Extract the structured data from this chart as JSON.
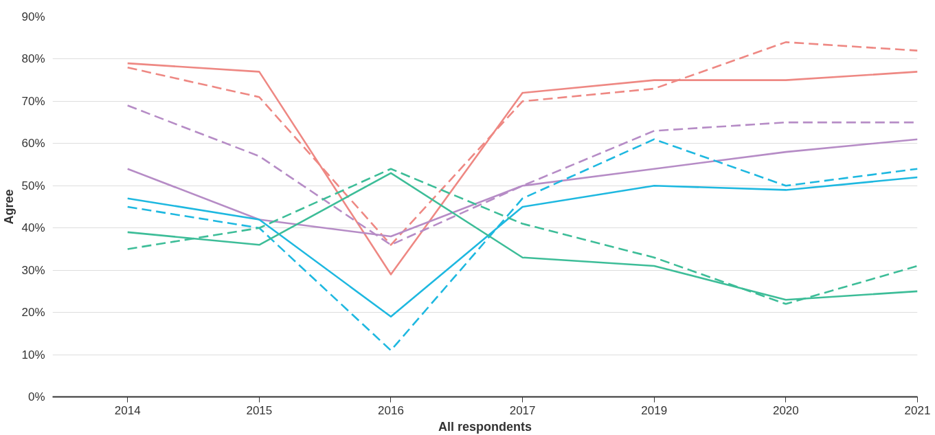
{
  "chart_data": {
    "type": "line",
    "xlabel": "All respondents",
    "ylabel": "Agree",
    "categories": [
      "2014",
      "2015",
      "2016",
      "2017",
      "2019",
      "2020",
      "2021"
    ],
    "ylim": [
      0,
      90
    ],
    "yticks": [
      {
        "value": 0,
        "label": "0%"
      },
      {
        "value": 10,
        "label": "10%"
      },
      {
        "value": 20,
        "label": "20%"
      },
      {
        "value": 30,
        "label": "30%"
      },
      {
        "value": 40,
        "label": "40%"
      },
      {
        "value": 50,
        "label": "50%"
      },
      {
        "value": 60,
        "label": "60%"
      },
      {
        "value": 70,
        "label": "70%"
      },
      {
        "value": 80,
        "label": "80%"
      },
      {
        "value": 90,
        "label": "90%"
      }
    ],
    "grid": "y",
    "marker": "none",
    "series": [
      {
        "color": "#ee8883",
        "line_style": "solid",
        "values": [
          79,
          77,
          29,
          72,
          75,
          75,
          77
        ]
      },
      {
        "color": "#ee8883",
        "line_style": "dashed",
        "values": [
          78,
          71,
          36,
          70,
          73,
          84,
          82
        ]
      },
      {
        "color": "#b68cc6",
        "line_style": "solid",
        "values": [
          54,
          42,
          38,
          50,
          54,
          58,
          61
        ]
      },
      {
        "color": "#b68cc6",
        "line_style": "dashed",
        "values": [
          69,
          57,
          36,
          50,
          63,
          65,
          65
        ]
      },
      {
        "color": "#1eb8e0",
        "line_style": "solid",
        "values": [
          47,
          42,
          19,
          45,
          50,
          49,
          52
        ]
      },
      {
        "color": "#1eb8e0",
        "line_style": "dashed",
        "values": [
          45,
          40,
          11,
          47,
          61,
          50,
          54
        ]
      },
      {
        "color": "#3dbd98",
        "line_style": "solid",
        "values": [
          39,
          36,
          53,
          33,
          31,
          23,
          25
        ]
      },
      {
        "color": "#3dbd98",
        "line_style": "dashed",
        "values": [
          35,
          40,
          54,
          41,
          33,
          22,
          31
        ]
      }
    ]
  }
}
